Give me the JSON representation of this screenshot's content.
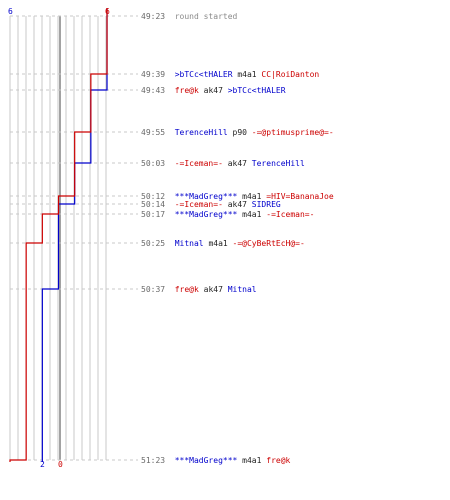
{
  "colors": {
    "blue": "#0000cc",
    "red": "#cc0000",
    "grid": "#c8c8c8",
    "dash": "#c8c8c8",
    "center": "#7a7a7a",
    "timestamp": "#6a6a6a"
  },
  "header": {
    "blue_start": "6",
    "red_start": "6"
  },
  "footer": {
    "blue_end": "2",
    "red_end": "0"
  },
  "chart_data": {
    "type": "line",
    "title": "",
    "x_label": "",
    "y_label": "",
    "series": [
      {
        "name": "",
        "color": "blue",
        "points": [
          [
            "49:23",
            6
          ],
          [
            "49:43",
            5
          ],
          [
            "50:03",
            4
          ],
          [
            "50:14",
            3
          ],
          [
            "50:17",
            3
          ],
          [
            "50:37",
            2
          ],
          [
            "51:23",
            2
          ]
        ]
      },
      {
        "name": "",
        "color": "red",
        "points": [
          [
            "49:23",
            6
          ],
          [
            "49:39",
            5
          ],
          [
            "49:55",
            4
          ],
          [
            "50:12",
            3
          ],
          [
            "50:17",
            2
          ],
          [
            "50:25",
            1
          ],
          [
            "51:23",
            0
          ]
        ]
      }
    ]
  },
  "events": [
    {
      "time": "49:23",
      "parts": [
        {
          "text": "round started",
          "c": "gray"
        }
      ]
    },
    {
      "time": "49:39",
      "parts": [
        {
          "text": ">bTCc<tHALER",
          "c": "blue"
        },
        {
          "text": " m4a1 ",
          "c": "blk"
        },
        {
          "text": "CC|RoiDanton",
          "c": "red"
        }
      ]
    },
    {
      "time": "49:43",
      "parts": [
        {
          "text": "fre@k",
          "c": "red"
        },
        {
          "text": " ak47 ",
          "c": "blk"
        },
        {
          "text": ">bTCc<tHALER",
          "c": "blue"
        }
      ]
    },
    {
      "time": "49:55",
      "parts": [
        {
          "text": "TerenceHill",
          "c": "blue"
        },
        {
          "text": " p90 ",
          "c": "blk"
        },
        {
          "text": "-=@ptimusprime@=-",
          "c": "red"
        }
      ]
    },
    {
      "time": "50:03",
      "parts": [
        {
          "text": "-=Iceman=-",
          "c": "red"
        },
        {
          "text": " ak47 ",
          "c": "blk"
        },
        {
          "text": "TerenceHill",
          "c": "blue"
        }
      ]
    },
    {
      "time": "50:12",
      "parts": [
        {
          "text": "***MadGreg***",
          "c": "blue"
        },
        {
          "text": " m4a1 ",
          "c": "blk"
        },
        {
          "text": "=HIV=BananaJoe",
          "c": "red"
        }
      ]
    },
    {
      "time": "50:14",
      "parts": [
        {
          "text": "-=Iceman=-",
          "c": "red"
        },
        {
          "text": " ak47 ",
          "c": "blk"
        },
        {
          "text": "SIDREG",
          "c": "blue"
        }
      ]
    },
    {
      "time": "50:17",
      "parts": [
        {
          "text": "***MadGreg***",
          "c": "blue"
        },
        {
          "text": " m4a1 ",
          "c": "blk"
        },
        {
          "text": "-=Iceman=-",
          "c": "red"
        }
      ]
    },
    {
      "time": "50:25",
      "parts": [
        {
          "text": "Mitnal",
          "c": "blue"
        },
        {
          "text": " m4a1 ",
          "c": "blk"
        },
        {
          "text": "-=@CyBeRtEcH@=-",
          "c": "red"
        }
      ]
    },
    {
      "time": "50:37",
      "parts": [
        {
          "text": "fre@k",
          "c": "red"
        },
        {
          "text": " ak47 ",
          "c": "blk"
        },
        {
          "text": "Mitnal",
          "c": "blue"
        }
      ]
    },
    {
      "time": "51:23",
      "parts": [
        {
          "text": "***MadGreg***",
          "c": "blue"
        },
        {
          "text": " m4a1 ",
          "c": "blk"
        },
        {
          "text": "fre@k",
          "c": "red"
        }
      ]
    }
  ]
}
